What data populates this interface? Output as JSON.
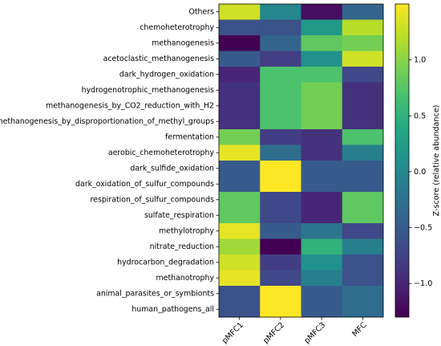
{
  "chart_data": {
    "type": "heatmap",
    "rows": [
      "Others",
      "chemoheterotrophy",
      "methanogenesis",
      "acetoclastic_methanogenesis",
      "dark_hydrogen_oxidation",
      "hydrogenotrophic_methanogenesis",
      "methanogenesis_by_CO2_reduction_with_H2",
      "methanogenesis_by_disproportionation_of_methyl_groups",
      "fermentation",
      "aerobic_chemoheterotrophy",
      "dark_sulfide_oxidation",
      "dark_oxidation_of_sulfur_compounds",
      "respiration_of_sulfur_compounds",
      "sulfate_respiration",
      "methylotrophy",
      "nitrate_reduction",
      "hydrocarbon_degradation",
      "methanotrophy",
      "animal_parasites_or_symbionts",
      "human_pathogens_all"
    ],
    "columns": [
      "pMFC1",
      "pMFC2",
      "pMFC3",
      "MFC"
    ],
    "values": [
      [
        1.3,
        0.0,
        -1.2,
        -0.4
      ],
      [
        -0.6,
        -0.6,
        0.2,
        1.2
      ],
      [
        -1.3,
        -0.4,
        0.8,
        0.9
      ],
      [
        -0.5,
        -0.8,
        0.1,
        1.3
      ],
      [
        -1.0,
        0.7,
        0.7,
        -0.7
      ],
      [
        -0.9,
        0.7,
        0.9,
        -0.9
      ],
      [
        -0.9,
        0.7,
        0.9,
        -0.9
      ],
      [
        -0.9,
        0.7,
        0.9,
        -0.9
      ],
      [
        0.9,
        -0.8,
        -0.9,
        0.7
      ],
      [
        1.4,
        -0.3,
        -0.9,
        -0.1
      ],
      [
        -0.5,
        1.5,
        -0.5,
        -0.5
      ],
      [
        -0.5,
        1.5,
        -0.5,
        -0.5
      ],
      [
        0.8,
        -0.7,
        -1.0,
        0.8
      ],
      [
        0.8,
        -0.7,
        -1.0,
        0.8
      ],
      [
        1.4,
        -0.5,
        -0.2,
        -0.7
      ],
      [
        1.1,
        -1.3,
        0.5,
        -0.1
      ],
      [
        1.3,
        -0.8,
        0.1,
        -0.6
      ],
      [
        1.4,
        -0.7,
        -0.1,
        -0.6
      ],
      [
        -0.6,
        1.5,
        -0.5,
        -0.3
      ],
      [
        -0.6,
        1.5,
        -0.5,
        -0.3
      ]
    ],
    "colormap": "viridis",
    "vmin": -1.3,
    "vmax": 1.5,
    "colorbar": {
      "label": "Z-score (relative abundance)",
      "ticks": [
        -1.0,
        -0.5,
        0.0,
        0.5,
        1.0
      ],
      "tick_labels": [
        "−1.0",
        "−0.5",
        "0.0",
        "0.5",
        "1.0"
      ]
    },
    "xlabel": "",
    "ylabel": "",
    "title": "",
    "grid": false
  }
}
